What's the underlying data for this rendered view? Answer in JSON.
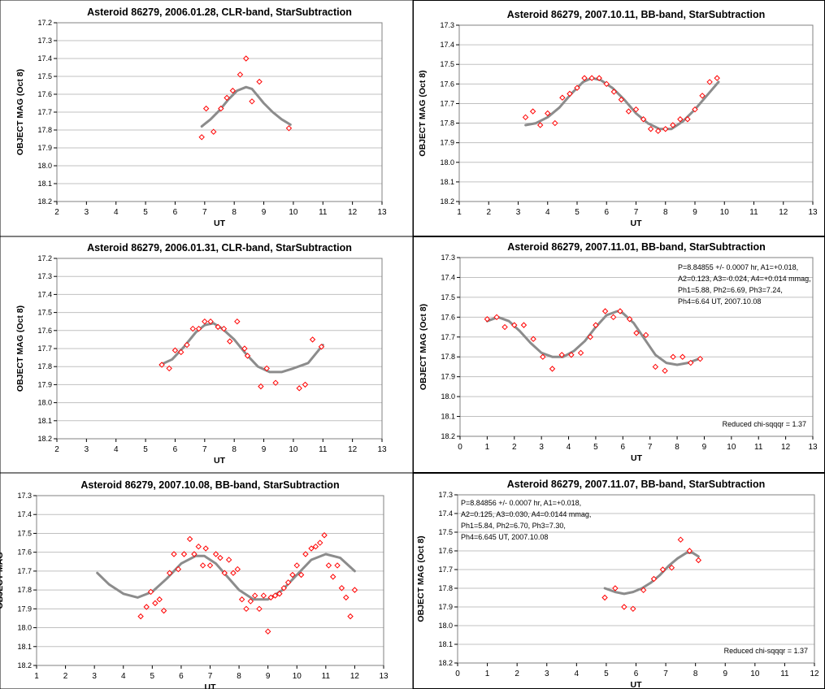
{
  "chart_data": [
    {
      "type": "scatter",
      "title": "Asteroid 86279, 2006.01.28, CLR-band, StarSubtraction",
      "xlabel": "UT",
      "ylabel": "OBJECT MAG (Oct 8)",
      "xlim": [
        2,
        13
      ],
      "ylim": [
        17.2,
        18.2
      ],
      "y_reversed": true,
      "x_ticks": [
        2,
        3,
        4,
        5,
        6,
        7,
        8,
        9,
        10,
        11,
        12,
        13
      ],
      "y_ticks": [
        17.2,
        17.3,
        17.4,
        17.5,
        17.6,
        17.7,
        17.8,
        17.9,
        18.0,
        18.1,
        18.2
      ],
      "y_tick_labels": [
        "17.2",
        "17.3",
        "17.4",
        "17.5",
        "17.6",
        "17.7",
        "17.8",
        "17.9",
        "18.0",
        "18.1",
        "18.2"
      ],
      "grid": "horizontal",
      "notes": [],
      "series": [
        {
          "kind": "points",
          "color": "#ff0000",
          "x": [
            6.9,
            7.05,
            7.3,
            7.55,
            7.75,
            7.95,
            8.2,
            8.4,
            8.6,
            8.85,
            9.85
          ],
          "y": [
            17.84,
            17.68,
            17.81,
            17.68,
            17.62,
            17.58,
            17.49,
            17.4,
            17.64,
            17.53,
            17.79
          ]
        },
        {
          "kind": "fit",
          "color": "#8c8c8c",
          "x": [
            6.9,
            7.2,
            7.5,
            7.8,
            8.1,
            8.4,
            8.6,
            8.8,
            9.0,
            9.3,
            9.6,
            9.9
          ],
          "y": [
            17.78,
            17.74,
            17.69,
            17.63,
            17.58,
            17.56,
            17.57,
            17.61,
            17.65,
            17.7,
            17.74,
            17.77
          ]
        }
      ]
    },
    {
      "type": "scatter",
      "title": "Asteroid 86279, 2007.10.11, BB-band, StarSubtraction",
      "xlabel": "UT",
      "ylabel": "OBJECT MAG (Oct 8)",
      "xlim": [
        1,
        13
      ],
      "ylim": [
        17.3,
        18.2
      ],
      "y_reversed": true,
      "x_ticks": [
        1,
        2,
        3,
        4,
        5,
        6,
        7,
        8,
        9,
        10,
        11,
        12,
        13
      ],
      "y_ticks": [
        17.3,
        17.4,
        17.5,
        17.6,
        17.7,
        17.8,
        17.9,
        18.0,
        18.1,
        18.2
      ],
      "y_tick_labels": [
        "17.3",
        "17.4",
        "17.5",
        "17.6",
        "17.7",
        "17.8",
        "17.9",
        "18.0",
        "18.1",
        "18.2"
      ],
      "grid": "horizontal",
      "notes": [],
      "series": [
        {
          "kind": "points",
          "color": "#ff0000",
          "x": [
            3.25,
            3.5,
            3.75,
            4.0,
            4.25,
            4.5,
            4.75,
            5.0,
            5.25,
            5.5,
            5.75,
            6.0,
            6.25,
            6.5,
            6.75,
            7.0,
            7.25,
            7.5,
            7.75,
            8.0,
            8.25,
            8.5,
            8.75,
            9.0,
            9.25,
            9.5,
            9.75
          ],
          "y": [
            17.77,
            17.74,
            17.81,
            17.75,
            17.8,
            17.67,
            17.65,
            17.62,
            17.57,
            17.57,
            17.57,
            17.6,
            17.64,
            17.68,
            17.74,
            17.73,
            17.78,
            17.83,
            17.84,
            17.83,
            17.81,
            17.78,
            17.78,
            17.73,
            17.66,
            17.59,
            17.57
          ]
        },
        {
          "kind": "fit",
          "color": "#8c8c8c",
          "x": [
            3.25,
            3.6,
            4.0,
            4.4,
            4.8,
            5.2,
            5.5,
            5.8,
            6.2,
            6.6,
            7.0,
            7.4,
            7.8,
            8.2,
            8.6,
            9.0,
            9.4,
            9.8
          ],
          "y": [
            17.81,
            17.8,
            17.77,
            17.72,
            17.65,
            17.59,
            17.57,
            17.58,
            17.62,
            17.68,
            17.75,
            17.8,
            17.83,
            17.83,
            17.79,
            17.73,
            17.66,
            17.59
          ]
        }
      ]
    },
    {
      "type": "scatter",
      "title": "Asteroid 86279, 2006.01.31, CLR-band, StarSubtraction",
      "xlabel": "UT",
      "ylabel": "OBJECT MAG (Oct 8)",
      "xlim": [
        2,
        13
      ],
      "ylim": [
        17.2,
        18.2
      ],
      "y_reversed": true,
      "x_ticks": [
        2,
        3,
        4,
        5,
        6,
        7,
        8,
        9,
        10,
        11,
        12,
        13
      ],
      "y_ticks": [
        17.2,
        17.3,
        17.4,
        17.5,
        17.6,
        17.7,
        17.8,
        17.9,
        18.0,
        18.1,
        18.2
      ],
      "y_tick_labels": [
        "17.2",
        "17.3",
        "17.4",
        "17.5",
        "17.6",
        "17.7",
        "17.8",
        "17.9",
        "18.0",
        "18.1",
        "18.2"
      ],
      "grid": "horizontal",
      "notes": [],
      "series": [
        {
          "kind": "points",
          "color": "#ff0000",
          "x": [
            5.55,
            5.8,
            6.0,
            6.2,
            6.4,
            6.6,
            6.8,
            7.0,
            7.2,
            7.45,
            7.65,
            7.85,
            8.1,
            8.35,
            8.45,
            8.9,
            9.1,
            9.4,
            10.2,
            10.4,
            10.65,
            10.95
          ],
          "y": [
            17.79,
            17.81,
            17.71,
            17.72,
            17.68,
            17.59,
            17.59,
            17.55,
            17.55,
            17.58,
            17.59,
            17.66,
            17.55,
            17.7,
            17.74,
            17.91,
            17.81,
            17.89,
            17.92,
            17.9,
            17.65,
            17.69
          ]
        },
        {
          "kind": "fit",
          "color": "#8c8c8c",
          "x": [
            5.5,
            5.9,
            6.3,
            6.7,
            7.0,
            7.3,
            7.6,
            8.0,
            8.4,
            8.8,
            9.2,
            9.6,
            10.0,
            10.5,
            11.0
          ],
          "y": [
            17.79,
            17.76,
            17.69,
            17.61,
            17.57,
            17.56,
            17.59,
            17.65,
            17.73,
            17.8,
            17.83,
            17.83,
            17.81,
            17.78,
            17.68
          ]
        }
      ]
    },
    {
      "type": "scatter",
      "title": "Asteroid 86279, 2007.11.01, BB-band, StarSubtraction",
      "xlabel": "UT",
      "ylabel": "OBJECT MAG (Oct 8)",
      "xlim": [
        0,
        13
      ],
      "ylim": [
        17.3,
        18.2
      ],
      "y_reversed": true,
      "x_ticks": [
        0,
        1,
        2,
        3,
        4,
        5,
        6,
        7,
        8,
        9,
        10,
        11,
        12,
        13
      ],
      "y_ticks": [
        17.3,
        17.4,
        17.5,
        17.6,
        17.7,
        17.8,
        17.9,
        18.0,
        18.1,
        18.2
      ],
      "y_tick_labels": [
        "17.3",
        "17.4",
        "17.5",
        "17.6",
        "17.7",
        "17.8",
        "17.9",
        "18.0",
        "18.1",
        "18.2"
      ],
      "grid": "horizontal",
      "notes": [
        {
          "position": "top-right",
          "lines": [
            "P=8.84855 +/- 0.0007 hr, A1=+0.018,",
            "A2=0.123, A3=-0.024, A4=+0.014 mmag,",
            "Ph1=5.88, Ph2=6.69, Ph3=7.24,",
            "Ph4=6.64  UT, 2007.10.08"
          ]
        },
        {
          "position": "bottom-right",
          "lines": [
            "Reduced chi-sqqqr = 1.37"
          ]
        }
      ],
      "series": [
        {
          "kind": "points",
          "color": "#ff0000",
          "x": [
            1.0,
            1.35,
            1.65,
            2.0,
            2.35,
            2.7,
            3.05,
            3.4,
            3.75,
            4.1,
            4.45,
            4.8,
            5.0,
            5.35,
            5.65,
            5.9,
            6.25,
            6.5,
            6.85,
            7.2,
            7.55,
            7.85,
            8.2,
            8.5,
            8.85
          ],
          "y": [
            17.61,
            17.6,
            17.65,
            17.64,
            17.64,
            17.71,
            17.8,
            17.86,
            17.79,
            17.79,
            17.78,
            17.7,
            17.64,
            17.57,
            17.6,
            17.57,
            17.61,
            17.68,
            17.69,
            17.85,
            17.87,
            17.8,
            17.8,
            17.83,
            17.81
          ]
        },
        {
          "kind": "fit",
          "color": "#8c8c8c",
          "x": [
            1.0,
            1.4,
            1.8,
            2.2,
            2.6,
            3.0,
            3.4,
            3.8,
            4.2,
            4.6,
            5.0,
            5.4,
            5.8,
            6.0,
            6.4,
            6.8,
            7.2,
            7.6,
            8.0,
            8.4,
            8.8
          ],
          "y": [
            17.62,
            17.6,
            17.62,
            17.67,
            17.73,
            17.78,
            17.8,
            17.8,
            17.77,
            17.72,
            17.65,
            17.59,
            17.57,
            17.58,
            17.63,
            17.71,
            17.79,
            17.83,
            17.84,
            17.83,
            17.81
          ]
        }
      ]
    },
    {
      "type": "scatter",
      "title": "Asteroid 86279, 2007.10.08, BB-band, StarSubtraction",
      "xlabel": "UT",
      "ylabel": "OBJECT MAG",
      "xlim": [
        1,
        13
      ],
      "ylim": [
        17.3,
        18.2
      ],
      "y_reversed": true,
      "x_ticks": [
        1,
        2,
        3,
        4,
        5,
        6,
        7,
        8,
        9,
        10,
        11,
        12,
        13
      ],
      "y_ticks": [
        17.3,
        17.4,
        17.5,
        17.6,
        17.7,
        17.8,
        17.9,
        18.0,
        18.1,
        18.2
      ],
      "y_tick_labels": [
        "17.3",
        "17.4",
        "17.5",
        "17.6",
        "17.7",
        "17.8",
        "17.9",
        "18.0",
        "18.1",
        "18.2"
      ],
      "grid": "horizontal",
      "notes": [],
      "series": [
        {
          "kind": "points",
          "color": "#ff0000",
          "x": [
            4.6,
            4.8,
            4.95,
            5.1,
            5.25,
            5.4,
            5.6,
            5.75,
            5.9,
            6.1,
            6.3,
            6.45,
            6.6,
            6.75,
            6.85,
            7.0,
            7.2,
            7.35,
            7.5,
            7.65,
            7.8,
            7.95,
            8.1,
            8.25,
            8.4,
            8.55,
            8.7,
            8.85,
            9.0,
            9.1,
            9.25,
            9.4,
            9.55,
            9.7,
            9.85,
            10.0,
            10.15,
            10.3,
            10.5,
            10.65,
            10.8,
            10.95,
            11.1,
            11.25,
            11.4,
            11.55,
            11.7,
            11.85,
            12.0
          ],
          "y": [
            17.94,
            17.89,
            17.81,
            17.87,
            17.85,
            17.91,
            17.71,
            17.61,
            17.69,
            17.61,
            17.53,
            17.61,
            17.57,
            17.67,
            17.58,
            17.67,
            17.61,
            17.63,
            17.71,
            17.64,
            17.71,
            17.69,
            17.85,
            17.9,
            17.86,
            17.83,
            17.9,
            17.83,
            18.02,
            17.84,
            17.83,
            17.82,
            17.79,
            17.76,
            17.72,
            17.67,
            17.72,
            17.61,
            17.58,
            17.57,
            17.55,
            17.51,
            17.67,
            17.73,
            17.67,
            17.79,
            17.84,
            17.94,
            17.8
          ]
        },
        {
          "kind": "fit",
          "color": "#8c8c8c",
          "x": [
            3.1,
            3.5,
            4.0,
            4.5,
            5.0,
            5.5,
            6.0,
            6.5,
            6.8,
            7.2,
            7.6,
            8.0,
            8.5,
            9.0,
            9.5,
            10.0,
            10.5,
            11.0,
            11.5,
            12.0
          ],
          "y": [
            17.71,
            17.77,
            17.82,
            17.84,
            17.81,
            17.74,
            17.66,
            17.62,
            17.62,
            17.66,
            17.73,
            17.8,
            17.85,
            17.85,
            17.8,
            17.72,
            17.64,
            17.61,
            17.63,
            17.7
          ]
        }
      ]
    },
    {
      "type": "scatter",
      "title": "Asteroid 86279, 2007.11.07, BB-band, StarSubtraction",
      "xlabel": "UT",
      "ylabel": "OBJECT MAG (Oct 8)",
      "xlim": [
        0,
        12
      ],
      "ylim": [
        17.3,
        18.2
      ],
      "y_reversed": true,
      "x_ticks": [
        0,
        1,
        2,
        3,
        4,
        5,
        6,
        7,
        8,
        9,
        10,
        11,
        12
      ],
      "y_ticks": [
        17.3,
        17.4,
        17.5,
        17.6,
        17.7,
        17.8,
        17.9,
        18.0,
        18.1,
        18.2
      ],
      "y_tick_labels": [
        "17.3",
        "17.4",
        "17.5",
        "17.6",
        "17.7",
        "17.8",
        "17.9",
        "18.0",
        "18.1",
        "18.2"
      ],
      "grid": "horizontal",
      "notes": [
        {
          "position": "top-left",
          "lines": [
            "P=8.84856 +/- 0.0007 hr, A1=+0.018,",
            "A2=0.125, A3=0.030, A4=0.0144 mmag,",
            "Ph1=5.84, Ph2=6.70, Ph3=7.30,",
            "Ph4=6.645  UT, 2007.10.08"
          ]
        },
        {
          "position": "bottom-right",
          "lines": [
            "Reduced chi-sqqqr = 1.37"
          ]
        }
      ],
      "series": [
        {
          "kind": "points",
          "color": "#ff0000",
          "x": [
            4.95,
            5.3,
            5.6,
            5.9,
            6.25,
            6.6,
            6.9,
            7.2,
            7.5,
            7.8,
            8.1
          ],
          "y": [
            17.85,
            17.8,
            17.9,
            17.91,
            17.81,
            17.75,
            17.7,
            17.69,
            17.54,
            17.6,
            17.65
          ]
        },
        {
          "kind": "fit",
          "color": "#8c8c8c",
          "x": [
            4.95,
            5.3,
            5.6,
            5.9,
            6.2,
            6.5,
            6.8,
            7.1,
            7.4,
            7.7,
            7.9,
            8.1
          ],
          "y": [
            17.8,
            17.82,
            17.83,
            17.82,
            17.8,
            17.77,
            17.73,
            17.68,
            17.64,
            17.61,
            17.61,
            17.63
          ]
        }
      ]
    }
  ]
}
